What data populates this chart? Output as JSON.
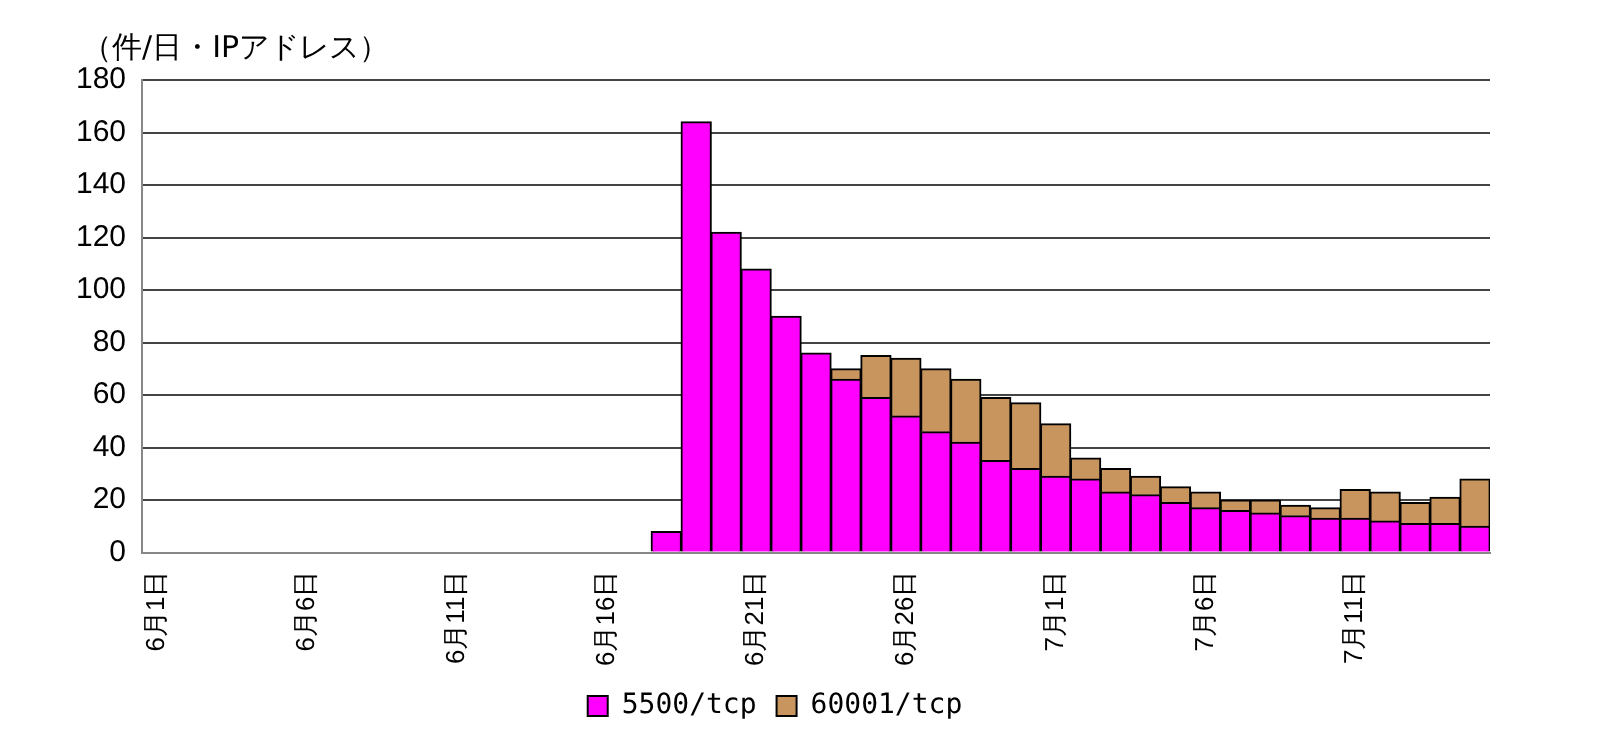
{
  "chart_data": {
    "type": "bar",
    "ylabel": "（件/日・IPアドレス）",
    "categories": [
      "6月1日",
      null,
      null,
      null,
      null,
      "6月6日",
      null,
      null,
      null,
      null,
      "6月11日",
      null,
      null,
      null,
      null,
      "6月16日",
      null,
      null,
      null,
      null,
      "6月21日",
      null,
      null,
      null,
      null,
      "6月26日",
      null,
      null,
      null,
      null,
      "7月1日",
      null,
      null,
      null,
      null,
      "7月6日",
      null,
      null,
      null,
      null,
      "7月11日",
      null,
      null,
      null,
      null
    ],
    "series": [
      {
        "name": "5500/tcp",
        "color": "#ff00ff",
        "values": [
          0,
          0,
          0,
          0,
          0,
          0,
          0,
          0,
          0,
          0,
          0,
          0,
          0,
          0,
          0,
          0,
          0,
          8,
          164,
          122,
          108,
          90,
          76,
          66,
          59,
          52,
          46,
          42,
          35,
          32,
          29,
          28,
          23,
          22,
          19,
          17,
          16,
          15,
          14,
          13,
          13,
          12,
          11,
          11,
          10
        ]
      },
      {
        "name": "60001/tcp",
        "color": "#c8955f",
        "values": [
          0,
          0,
          0,
          0,
          0,
          0,
          0,
          0,
          0,
          0,
          0,
          0,
          0,
          0,
          0,
          0,
          0,
          0,
          0,
          0,
          0,
          0,
          0,
          4,
          16,
          22,
          24,
          24,
          24,
          25,
          20,
          8,
          9,
          7,
          6,
          6,
          4,
          5,
          4,
          4,
          11,
          11,
          8,
          10,
          18
        ]
      }
    ],
    "stacked": true,
    "ylim": [
      0,
      180
    ],
    "yticks": [
      0,
      20,
      40,
      60,
      80,
      100,
      120,
      140,
      160,
      180
    ],
    "grid": "y",
    "legend": "bottom"
  }
}
